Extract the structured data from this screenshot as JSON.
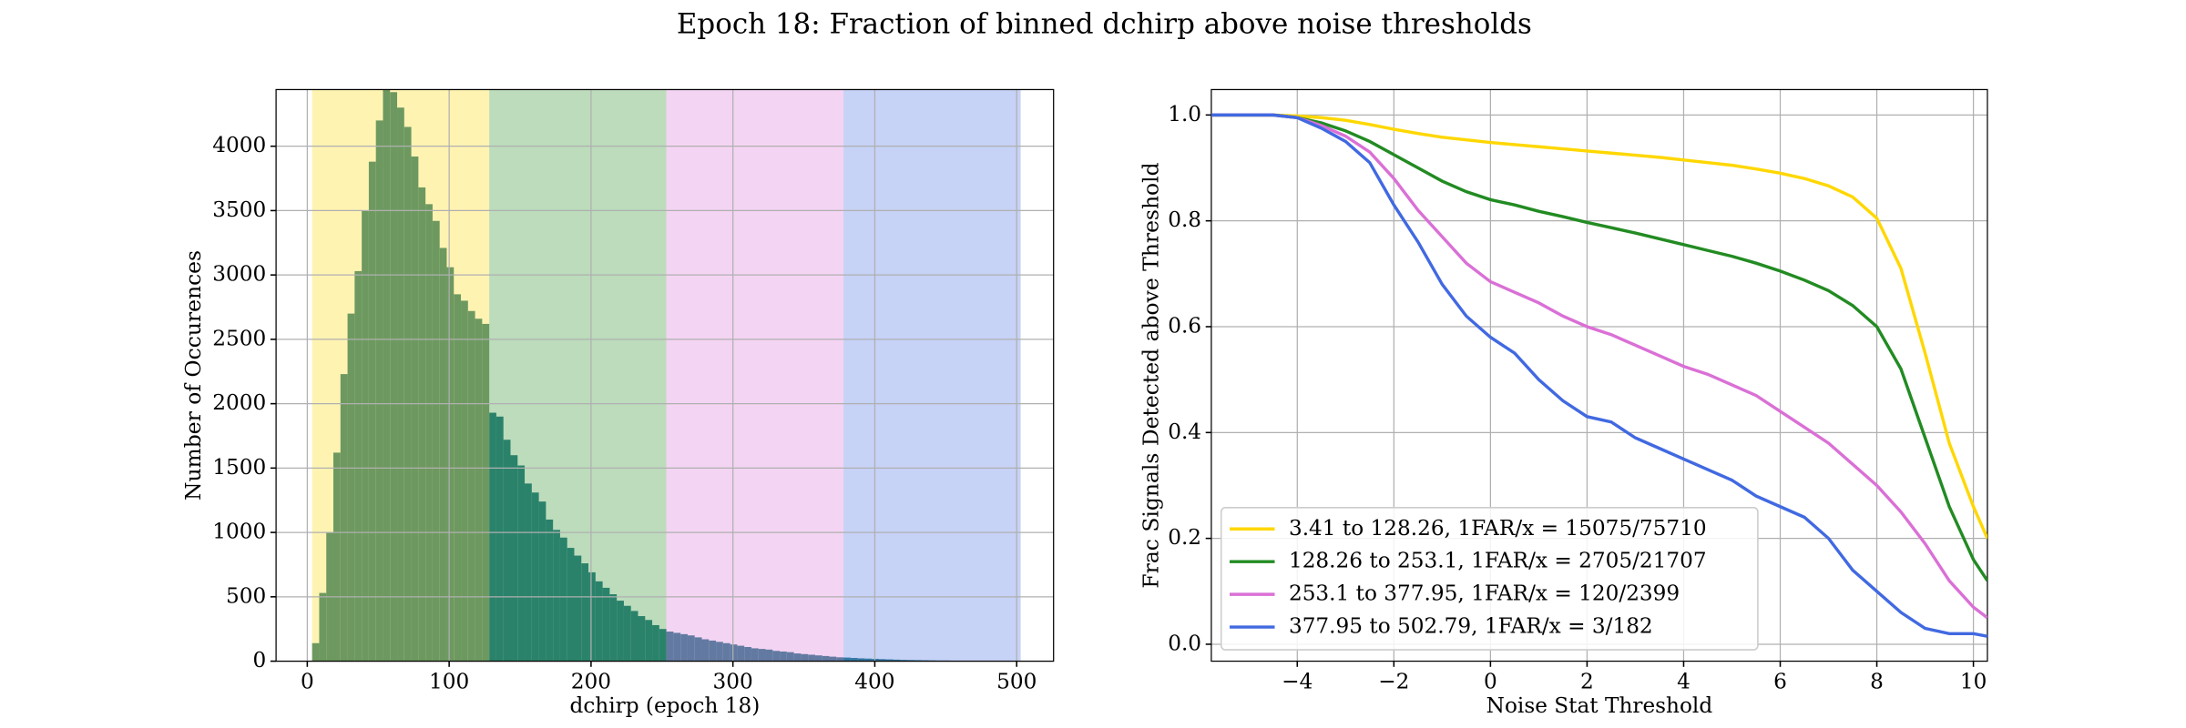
{
  "title": "Epoch 18: Fraction of binned dchirp above noise thresholds",
  "chart_data": [
    {
      "type": "histogram",
      "xlabel": "dchirp (epoch 18)",
      "ylabel": "Number of Occurences",
      "color": "#2f7f8a",
      "grid": true,
      "xlim": [
        -22,
        526
      ],
      "ylim": [
        0,
        4440
      ],
      "xticks": [
        0,
        100,
        200,
        300,
        400,
        500
      ],
      "yticks": [
        0,
        500,
        1000,
        1500,
        2000,
        2500,
        3000,
        3500,
        4000
      ],
      "bands": [
        {
          "start": 3.41,
          "end": 128.26,
          "color": "#ffd700",
          "opacity": 0.3
        },
        {
          "start": 128.26,
          "end": 253.1,
          "color": "#228b22",
          "opacity": 0.3
        },
        {
          "start": 253.1,
          "end": 377.95,
          "color": "#da70d6",
          "opacity": 0.3
        },
        {
          "start": 377.95,
          "end": 502.79,
          "color": "#4169e1",
          "opacity": 0.3
        }
      ],
      "bins": [
        3.41,
        8.4,
        13.4,
        18.39,
        23.39,
        28.38,
        33.37,
        38.37,
        43.36,
        48.35,
        53.35,
        58.34,
        63.34,
        68.33,
        73.32,
        78.32,
        83.31,
        88.3,
        93.3,
        98.29,
        103.29,
        108.28,
        113.27,
        118.27,
        123.26,
        128.26,
        133.25,
        138.24,
        143.24,
        148.23,
        153.22,
        158.22,
        163.21,
        168.21,
        173.2,
        178.19,
        183.19,
        188.18,
        193.17,
        198.17,
        203.16,
        208.16,
        213.15,
        218.14,
        223.14,
        228.13,
        233.12,
        238.12,
        243.11,
        248.11,
        253.1,
        258.09,
        263.09,
        268.08,
        273.07,
        278.07,
        283.06,
        288.06,
        293.05,
        298.04,
        303.04,
        308.03,
        313.02,
        318.02,
        323.01,
        328.01,
        333.0,
        337.99,
        342.99,
        347.98,
        352.98,
        357.97,
        362.96,
        367.96,
        372.95,
        377.95,
        382.94,
        387.93,
        392.93,
        397.92,
        402.91,
        407.91,
        412.9,
        417.9,
        422.89,
        427.88,
        432.88,
        437.87,
        442.87,
        447.86,
        452.85,
        457.85,
        462.84,
        467.83,
        472.83,
        477.82,
        482.82,
        487.81,
        492.8,
        497.8,
        502.79
      ],
      "values": [
        140,
        530,
        1000,
        1620,
        2230,
        2700,
        3030,
        3500,
        3880,
        4200,
        4440,
        4420,
        4300,
        4150,
        3920,
        3680,
        3550,
        3420,
        3210,
        3060,
        2850,
        2800,
        2720,
        2660,
        2620,
        1930,
        1900,
        1720,
        1600,
        1520,
        1380,
        1310,
        1240,
        1100,
        1020,
        960,
        880,
        820,
        760,
        690,
        620,
        570,
        520,
        470,
        430,
        390,
        350,
        320,
        280,
        250,
        230,
        220,
        210,
        200,
        185,
        170,
        160,
        150,
        140,
        130,
        120,
        110,
        100,
        95,
        90,
        80,
        75,
        70,
        60,
        55,
        50,
        45,
        40,
        35,
        30,
        28,
        25,
        22,
        20,
        18,
        16,
        14,
        12,
        10,
        9,
        8,
        7,
        6,
        5,
        5,
        4,
        3,
        3,
        2,
        2,
        2,
        1,
        1,
        1,
        1
      ]
    },
    {
      "type": "line",
      "xlabel": "Noise Stat Threshold",
      "ylabel": "Frac Signals Detected above Threshold",
      "grid": true,
      "legend": "lower left",
      "xlim": [
        -5.78,
        10.29
      ],
      "ylim": [
        -0.032,
        1.048
      ],
      "xticks": [
        {
          "value": -4,
          "label": "−4"
        },
        {
          "value": -2,
          "label": "−2"
        },
        0,
        2,
        4,
        6,
        8,
        10
      ],
      "yticks": [
        {
          "value": 0,
          "label": "0.0"
        },
        0.2,
        0.4,
        0.6,
        0.8,
        {
          "value": 1,
          "label": "1.0"
        }
      ],
      "x": [
        -5.78,
        -5,
        -4.5,
        -4,
        -3.5,
        -3,
        -2.5,
        -2,
        -1.5,
        -1,
        -0.5,
        0,
        0.5,
        1,
        1.5,
        2,
        2.5,
        3,
        3.5,
        4,
        4.5,
        5,
        5.5,
        6,
        6.5,
        7,
        7.5,
        8,
        8.5,
        9,
        9.5,
        10,
        10.29
      ],
      "series": [
        {
          "name": "3.41 to 128.26, 1FAR/x = 15075/75710",
          "color": "#ffd700",
          "values": [
            1,
            1,
            1,
            0.998,
            0.995,
            0.99,
            0.982,
            0.973,
            0.965,
            0.958,
            0.953,
            0.948,
            0.944,
            0.94,
            0.936,
            0.932,
            0.928,
            0.924,
            0.92,
            0.915,
            0.91,
            0.905,
            0.898,
            0.89,
            0.88,
            0.866,
            0.845,
            0.805,
            0.71,
            0.55,
            0.38,
            0.26,
            0.2
          ]
        },
        {
          "name": "128.26 to 253.1, 1FAR/x = 2705/21707",
          "color": "#228b22",
          "values": [
            1,
            1,
            1,
            0.995,
            0.985,
            0.97,
            0.95,
            0.925,
            0.9,
            0.875,
            0.855,
            0.84,
            0.83,
            0.818,
            0.808,
            0.797,
            0.787,
            0.777,
            0.766,
            0.755,
            0.744,
            0.733,
            0.72,
            0.705,
            0.688,
            0.668,
            0.64,
            0.6,
            0.52,
            0.39,
            0.26,
            0.16,
            0.12
          ]
        },
        {
          "name": "253.1 to 377.95, 1FAR/x = 120/2399",
          "color": "#da70d6",
          "values": [
            1,
            1,
            1,
            0.995,
            0.98,
            0.96,
            0.93,
            0.88,
            0.82,
            0.77,
            0.72,
            0.685,
            0.665,
            0.645,
            0.62,
            0.6,
            0.585,
            0.565,
            0.545,
            0.525,
            0.51,
            0.49,
            0.47,
            0.44,
            0.41,
            0.38,
            0.34,
            0.3,
            0.25,
            0.19,
            0.12,
            0.07,
            0.05
          ]
        },
        {
          "name": "377.95 to 502.79, 1FAR/x = 3/182",
          "color": "#4169e1",
          "values": [
            1,
            1,
            1,
            0.995,
            0.975,
            0.95,
            0.91,
            0.83,
            0.76,
            0.68,
            0.62,
            0.58,
            0.55,
            0.5,
            0.46,
            0.43,
            0.42,
            0.39,
            0.37,
            0.35,
            0.33,
            0.31,
            0.28,
            0.26,
            0.24,
            0.2,
            0.14,
            0.1,
            0.06,
            0.03,
            0.02,
            0.02,
            0.015
          ]
        }
      ]
    }
  ]
}
